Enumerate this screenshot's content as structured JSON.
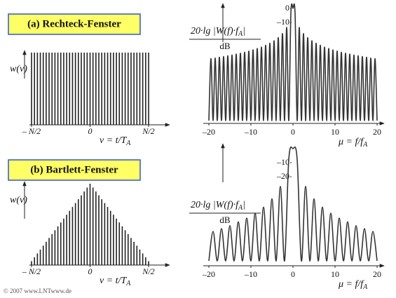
{
  "chart_data": [
    {
      "type": "stem",
      "title": "(a)  Rechteck-Fenster",
      "y_label": "w(ν)",
      "x_label": {
        "main": "ν = t/T",
        "sub": "A"
      },
      "x": [
        -20,
        -19,
        -18,
        -17,
        -16,
        -15,
        -14,
        -13,
        -12,
        -11,
        -10,
        -9,
        -8,
        -7,
        -6,
        -5,
        -4,
        -3,
        -2,
        -1,
        0,
        1,
        2,
        3,
        4,
        5,
        6,
        7,
        8,
        9,
        10,
        11,
        12,
        13,
        14,
        15,
        16,
        17,
        18,
        19,
        20
      ],
      "values": [
        1,
        1,
        1,
        1,
        1,
        1,
        1,
        1,
        1,
        1,
        1,
        1,
        1,
        1,
        1,
        1,
        1,
        1,
        1,
        1,
        1,
        1,
        1,
        1,
        1,
        1,
        1,
        1,
        1,
        1,
        1,
        1,
        1,
        1,
        1,
        1,
        1,
        1,
        1,
        1,
        1
      ],
      "xlim": [
        -20,
        20
      ],
      "ylim": [
        0,
        1
      ],
      "xticks": [
        {
          "value": -20,
          "label": "– N/2"
        },
        0,
        {
          "value": 20,
          "label": "N/2"
        }
      ],
      "color": "#222"
    },
    {
      "type": "line",
      "y_label": {
        "main": "20·lg |W(f)·f",
        "sub": "A",
        "end": "|"
      },
      "y_unit": "dB",
      "x_label": {
        "main": "μ = f/f",
        "sub": "A"
      },
      "x": [
        -20,
        -19.5,
        -19,
        -18.5,
        -18,
        -17.5,
        -17,
        -16.5,
        -16,
        -15.5,
        -15,
        -14.5,
        -14,
        -13.5,
        -13,
        -12.5,
        -12,
        -11.5,
        -11,
        -10.5,
        -10,
        -9.5,
        -9,
        -8.5,
        -8,
        -7.5,
        -7,
        -6.5,
        -6,
        -5.5,
        -5,
        -4.5,
        -4,
        -3.5,
        -3,
        -2.5,
        -2,
        -1.5,
        -1,
        -0.5,
        0,
        0.5,
        1,
        1.5,
        2,
        2.5,
        3,
        3.5,
        4,
        4.5,
        5,
        5.5,
        6,
        6.5,
        7,
        7.5,
        8,
        8.5,
        9,
        9.5,
        10,
        10.5,
        11,
        11.5,
        12,
        12.5,
        13,
        13.5,
        14,
        14.5,
        15,
        15.5,
        16,
        16.5,
        17,
        17.5,
        18,
        18.5,
        19,
        19.5,
        20
      ],
      "values": [
        -80,
        -35.7,
        -80,
        -35.3,
        -80,
        -34.8,
        -80,
        -34.3,
        -80,
        -33.7,
        -80,
        -33.2,
        -80,
        -32.5,
        -80,
        -31.9,
        -80,
        -31.2,
        -80,
        -30.4,
        -80,
        -29.5,
        -80,
        -28.5,
        -80,
        -27.5,
        -80,
        -26.2,
        -80,
        -24.8,
        -80,
        -23.0,
        -80,
        -20.8,
        -80,
        -17.9,
        -80,
        -13.5,
        -80,
        -3.9,
        0,
        -3.9,
        -80,
        -13.5,
        -80,
        -17.9,
        -80,
        -20.8,
        -80,
        -23.0,
        -80,
        -24.8,
        -80,
        -26.2,
        -80,
        -27.5,
        -80,
        -28.5,
        -80,
        -29.5,
        -80,
        -30.4,
        -80,
        -31.2,
        -80,
        -31.9,
        -80,
        -32.5,
        -80,
        -33.2,
        -80,
        -33.7,
        -80,
        -34.3,
        -80,
        -34.8,
        -80,
        -35.3,
        -80,
        -35.7,
        -80
      ],
      "xlim": [
        -20,
        20
      ],
      "ylim": [
        -81.5,
        0
      ],
      "xticks": [
        {
          "value": -20,
          "label": "–20"
        },
        {
          "value": -10,
          "label": "–10"
        },
        0,
        10,
        20
      ],
      "yticks": [
        0,
        {
          "value": -10,
          "label": "–10"
        }
      ],
      "color": "#333"
    },
    {
      "type": "stem",
      "title": "(b)  Bartlett-Fenster",
      "y_label": "w(ν)",
      "x_label": {
        "main": "ν = t/T",
        "sub": "A"
      },
      "x": [
        -20,
        -19,
        -18,
        -17,
        -16,
        -15,
        -14,
        -13,
        -12,
        -11,
        -10,
        -9,
        -8,
        -7,
        -6,
        -5,
        -4,
        -3,
        -2,
        -1,
        0,
        1,
        2,
        3,
        4,
        5,
        6,
        7,
        8,
        9,
        10,
        11,
        12,
        13,
        14,
        15,
        16,
        17,
        18,
        19,
        20
      ],
      "values": [
        1,
        2,
        3,
        4,
        5,
        6,
        7,
        8,
        9,
        10,
        11,
        12,
        13,
        14,
        15,
        16,
        17,
        18,
        19,
        20,
        21,
        20,
        19,
        18,
        17,
        16,
        15,
        14,
        13,
        12,
        11,
        10,
        9,
        8,
        7,
        6,
        5,
        4,
        3,
        2,
        1
      ],
      "xlim": [
        -20,
        20
      ],
      "ylim": [
        0,
        21
      ],
      "xticks": [
        {
          "value": -20,
          "label": "– N/2"
        },
        0,
        {
          "value": 20,
          "label": "N/2"
        }
      ],
      "color": "#222"
    },
    {
      "type": "line",
      "y_label": {
        "main": "20·lg |W(f)·f",
        "sub": "A",
        "end": "|"
      },
      "y_unit": "dB",
      "x_label": {
        "main": "μ = f/f",
        "sub": "A"
      },
      "x": [
        -20,
        -19,
        -18,
        -17,
        -16,
        -15,
        -14,
        -13,
        -12,
        -11,
        -10,
        -9,
        -8,
        -7,
        -6,
        -5,
        -4,
        -3,
        -2,
        -1,
        0,
        1,
        2,
        3,
        4,
        5,
        6,
        7,
        8,
        9,
        10,
        11,
        12,
        13,
        14,
        15,
        16,
        17,
        18,
        19,
        20
      ],
      "values": [
        -80,
        -59.0,
        -80,
        -57.0,
        -80,
        -54.9,
        -80,
        -52.2,
        -80,
        -49.5,
        -80,
        -46.0,
        -80,
        -41.7,
        -80,
        -35.8,
        -80,
        -26.9,
        -80,
        -7.8,
        0,
        -7.8,
        -80,
        -26.9,
        -80,
        -35.8,
        -80,
        -41.7,
        -80,
        -46.0,
        -80,
        -49.5,
        -80,
        -52.2,
        -80,
        -54.9,
        -80,
        -57.0,
        -80,
        -59.0,
        -80
      ],
      "xlim": [
        -20,
        20
      ],
      "ylim": [
        -83,
        0
      ],
      "xticks": [
        {
          "value": -20,
          "label": "–20"
        },
        {
          "value": -10,
          "label": "–10"
        },
        0,
        10,
        20
      ],
      "yticks": [
        {
          "value": -10,
          "label": "–10"
        },
        {
          "value": -20,
          "label": "–20"
        }
      ],
      "color": "#333"
    }
  ],
  "copyright": "© 2007 www.LNTwww.de"
}
